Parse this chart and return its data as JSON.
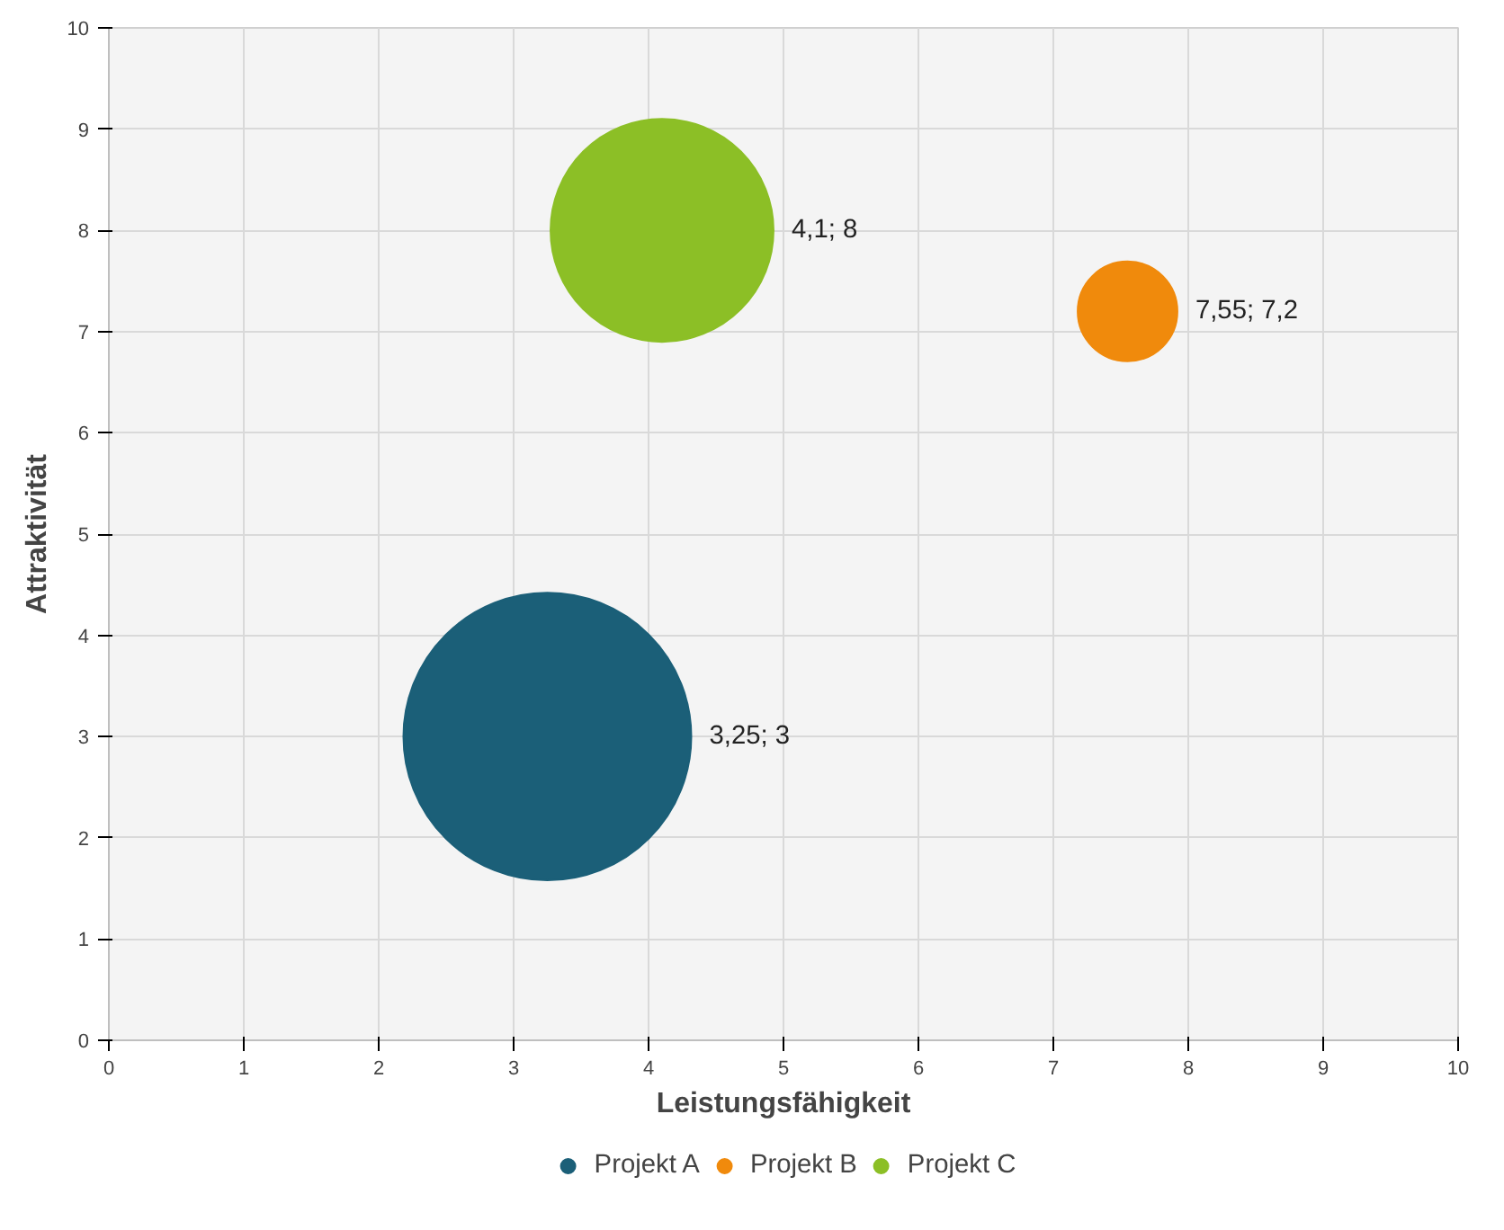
{
  "chart_data": {
    "type": "bubble",
    "xlabel": "Leistungsfähigkeit",
    "ylabel": "Attraktivität",
    "series": [
      {
        "name": "Projekt A",
        "color": "#1b5f78",
        "x": [
          3.25
        ],
        "values": [
          3
        ],
        "sizes": [
          1
        ],
        "value_labels": [
          "3,25; 3"
        ]
      },
      {
        "name": "Projekt B",
        "color": "#f08a0c",
        "x": [
          7.55
        ],
        "values": [
          7.2
        ],
        "sizes": [
          0.12
        ],
        "value_labels": [
          "7,55; 7,2"
        ]
      },
      {
        "name": "Projekt C",
        "color": "#8cbf26",
        "x": [
          4.1
        ],
        "values": [
          8
        ],
        "sizes": [
          0.6
        ],
        "value_labels": [
          "4,1; 8"
        ]
      }
    ],
    "xlim": [
      0,
      10
    ],
    "ylim": [
      0,
      10
    ],
    "xticks": [
      0,
      1,
      2,
      3,
      4,
      5,
      6,
      7,
      8,
      9,
      10
    ],
    "yticks": [
      0,
      1,
      2,
      3,
      4,
      5,
      6,
      7,
      8,
      9,
      10
    ],
    "grid": true,
    "legend": "bottom"
  }
}
